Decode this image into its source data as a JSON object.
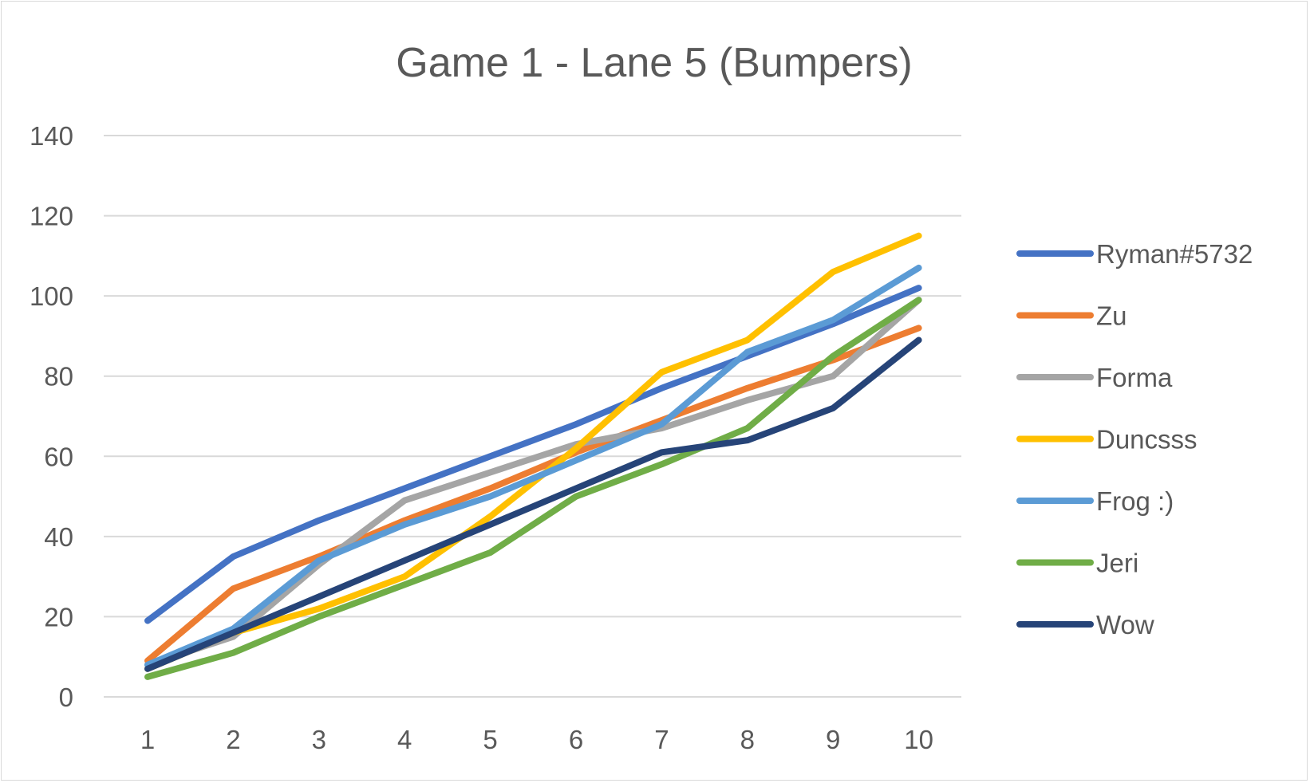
{
  "chart_data": {
    "type": "line",
    "title": "Game 1 - Lane 5 (Bumpers)",
    "xlabel": "",
    "ylabel": "",
    "categories": [
      "1",
      "2",
      "3",
      "4",
      "5",
      "6",
      "7",
      "8",
      "9",
      "10"
    ],
    "ylim": [
      0,
      140
    ],
    "yticks": [
      "0",
      "20",
      "40",
      "60",
      "80",
      "100",
      "120",
      "140"
    ],
    "grid": true,
    "legend_position": "right",
    "series": [
      {
        "name": "Ryman#5732",
        "color": "#4472c4",
        "values": [
          19,
          35,
          44,
          52,
          60,
          68,
          77,
          85,
          93,
          102
        ]
      },
      {
        "name": "Zu",
        "color": "#ed7d31",
        "values": [
          9,
          27,
          35,
          44,
          52,
          61,
          69,
          77,
          84,
          92
        ]
      },
      {
        "name": "Forma",
        "color": "#a5a5a5",
        "values": [
          8,
          15,
          33,
          49,
          56,
          63,
          67,
          74,
          80,
          99
        ]
      },
      {
        "name": "Duncsss",
        "color": "#ffc000",
        "values": [
          7,
          16,
          22,
          30,
          45,
          62,
          81,
          89,
          106,
          115
        ]
      },
      {
        "name": "Frog :)",
        "color": "#5b9bd5",
        "values": [
          8,
          17,
          34,
          43,
          50,
          59,
          68,
          86,
          94,
          107
        ]
      },
      {
        "name": "Jeri",
        "color": "#70ad47",
        "values": [
          5,
          11,
          20,
          28,
          36,
          50,
          58,
          67,
          85,
          99
        ]
      },
      {
        "name": "Wow",
        "color": "#264478",
        "values": [
          7,
          16,
          25,
          34,
          43,
          52,
          61,
          64,
          72,
          89
        ]
      }
    ]
  }
}
